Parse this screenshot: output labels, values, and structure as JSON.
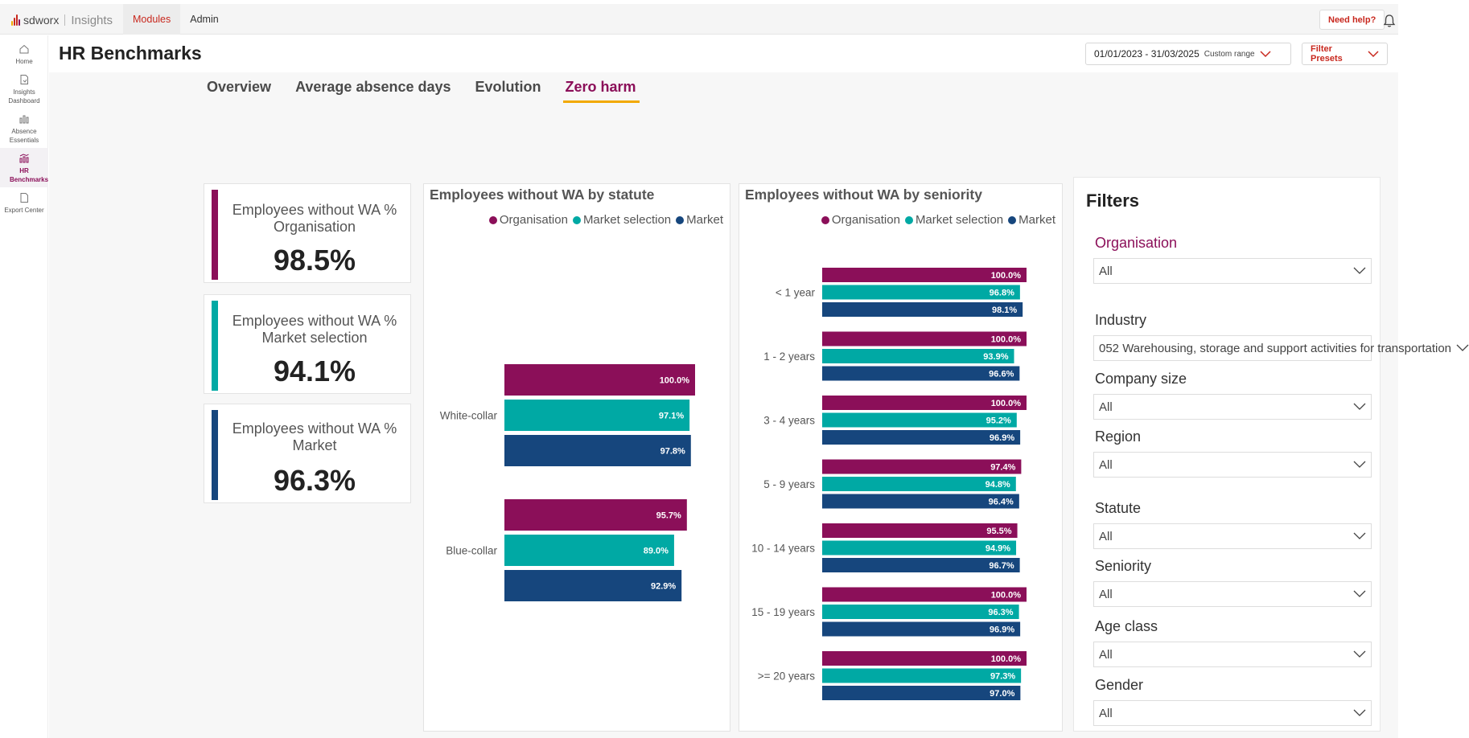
{
  "app": {
    "brand": "sdworx",
    "product": "Insights"
  },
  "topnav": {
    "items": [
      {
        "label": "Modules",
        "active": true
      },
      {
        "label": "Admin",
        "active": false
      }
    ],
    "help_label": "Need help?"
  },
  "sidebar": {
    "items": [
      {
        "label": "Home",
        "icon": "home-icon"
      },
      {
        "label": "Insights Dashboard",
        "icon": "document-icon"
      },
      {
        "label": "Absence Essentials",
        "icon": "bar-chart-icon"
      },
      {
        "label": "HR Benchmarks",
        "icon": "benchmark-icon",
        "active": true
      },
      {
        "label": "Export Center",
        "icon": "file-icon"
      }
    ]
  },
  "header": {
    "title": "HR Benchmarks",
    "date_range": "01/01/2023 - 31/03/2025",
    "range_type": "Custom range",
    "filter_presets": "Filter Presets"
  },
  "tabs": [
    {
      "label": "Overview",
      "active": false
    },
    {
      "label": "Average absence days",
      "active": false
    },
    {
      "label": "Evolution",
      "active": false
    },
    {
      "label": "Zero harm",
      "active": true
    }
  ],
  "colors": {
    "organisation": "#8b0f59",
    "market_selection": "#00a9a4",
    "market": "#16467d",
    "accent": "#c8281e",
    "tab_underline": "#f2a900"
  },
  "kpis": [
    {
      "label_line1": "Employees without WA %",
      "label_line2": "Organisation",
      "value": "98.5%",
      "color": "#8b0f59"
    },
    {
      "label_line1": "Employees without WA %",
      "label_line2": "Market selection",
      "value": "94.1%",
      "color": "#00a9a4"
    },
    {
      "label_line1": "Employees without WA %",
      "label_line2": "Market",
      "value": "96.3%",
      "color": "#16467d"
    }
  ],
  "legend": [
    "Organisation",
    "Market selection",
    "Market"
  ],
  "chart_data": [
    {
      "type": "bar",
      "orientation": "horizontal",
      "title": "Employees without WA by statute",
      "categories": [
        "White-collar",
        "Blue-collar"
      ],
      "series": [
        {
          "name": "Organisation",
          "values": [
            100.0,
            95.7
          ]
        },
        {
          "name": "Market selection",
          "values": [
            97.1,
            89.0
          ]
        },
        {
          "name": "Market",
          "values": [
            97.8,
            92.9
          ]
        }
      ],
      "unit": "%"
    },
    {
      "type": "bar",
      "orientation": "horizontal",
      "title": "Employees without WA by seniority",
      "categories": [
        "< 1 year",
        "1 - 2 years",
        "3 - 4 years",
        "5 - 9 years",
        "10 - 14 years",
        "15 - 19 years",
        ">= 20 years"
      ],
      "series": [
        {
          "name": "Organisation",
          "values": [
            100.0,
            100.0,
            100.0,
            97.4,
            95.5,
            100.0,
            100.0
          ]
        },
        {
          "name": "Market selection",
          "values": [
            96.8,
            93.9,
            95.2,
            94.8,
            94.9,
            96.3,
            97.3
          ]
        },
        {
          "name": "Market",
          "values": [
            98.1,
            96.6,
            96.9,
            96.4,
            96.7,
            96.9,
            97.0
          ]
        }
      ],
      "unit": "%"
    }
  ],
  "filters": {
    "title": "Filters",
    "items": [
      {
        "label": "Organisation",
        "value": "All"
      },
      {
        "label": "Industry",
        "value": "052 Warehousing, storage and support activities for transportation"
      },
      {
        "label": "Company size",
        "value": "All"
      },
      {
        "label": "Region",
        "value": "All"
      },
      {
        "label": "Statute",
        "value": "All"
      },
      {
        "label": "Seniority",
        "value": "All"
      },
      {
        "label": "Age class",
        "value": "All"
      },
      {
        "label": "Gender",
        "value": "All"
      }
    ]
  }
}
